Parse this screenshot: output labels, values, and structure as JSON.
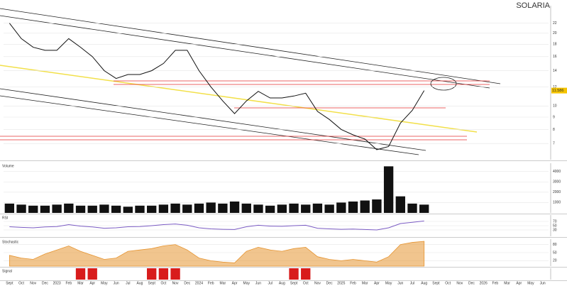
{
  "chart_data": [
    {
      "type": "line",
      "title": "SOLARIA",
      "color": "#111111",
      "log": true,
      "grid": true,
      "categories": [
        "Sept",
        "Oct",
        "Nov",
        "Dec",
        "2023",
        "Feb",
        "Mar",
        "Apr",
        "May",
        "Jun",
        "Jul",
        "Aug",
        "Sept",
        "Oct",
        "Nov",
        "Dec",
        "2024",
        "Feb",
        "Mar",
        "Apr",
        "May",
        "Jun",
        "Jul",
        "Aug",
        "Sept",
        "Oct",
        "Nov",
        "Dec",
        "2025",
        "Feb",
        "Mar",
        "Apr",
        "May",
        "Jun",
        "Jul",
        "Aug",
        "Sept",
        "Oct",
        "Nov",
        "Dec",
        "2026",
        "Feb",
        "Mar",
        "Apr",
        "May",
        "Jun"
      ],
      "values": [
        22,
        19,
        17.5,
        17,
        17,
        19,
        17.5,
        16,
        14,
        13,
        13.5,
        13.5,
        14,
        15,
        17,
        17,
        14,
        12,
        10.5,
        9.3,
        10.5,
        11.5,
        10.8,
        10.8,
        11,
        11.3,
        9.5,
        8.8,
        8,
        7.6,
        7.3,
        6.6,
        6.8,
        8.5,
        9.6,
        11.586,
        null,
        null,
        null,
        null,
        null,
        null,
        null,
        null,
        null,
        null
      ],
      "value_labels": [
        null,
        null,
        null,
        null,
        null,
        null,
        null,
        null,
        null,
        null,
        null,
        null,
        null,
        null,
        null,
        null,
        null,
        null,
        null,
        null,
        null,
        null,
        null,
        null,
        null,
        null,
        null,
        null,
        null,
        null,
        null,
        null,
        null,
        null,
        null,
        "11.586",
        null,
        null,
        null,
        null,
        null,
        null,
        null,
        null,
        null,
        null
      ],
      "ylim": [
        6,
        26
      ],
      "yticks": [
        7,
        8,
        9,
        10,
        12,
        14,
        16,
        18,
        20,
        22
      ]
    },
    {
      "type": "bar",
      "title": "Volume",
      "color": "#111111",
      "values": [
        900,
        800,
        700,
        700,
        800,
        900,
        700,
        700,
        800,
        700,
        600,
        700,
        700,
        800,
        900,
        800,
        900,
        1000,
        900,
        1100,
        900,
        800,
        700,
        800,
        900,
        800,
        900,
        800,
        1000,
        1100,
        1200,
        1300,
        4500,
        1600,
        900,
        800,
        null,
        null,
        null,
        null,
        null,
        null,
        null,
        null,
        null,
        null
      ],
      "ylim": [
        0,
        4800
      ],
      "yticks": [
        1000,
        2000,
        3000,
        4000
      ]
    },
    {
      "type": "line",
      "title": "RSI",
      "color": "#7b5cc4",
      "values": [
        45,
        42,
        40,
        44,
        46,
        55,
        48,
        44,
        38,
        40,
        45,
        46,
        50,
        55,
        58,
        52,
        40,
        35,
        33,
        32,
        45,
        52,
        48,
        47,
        50,
        52,
        38,
        35,
        33,
        34,
        32,
        30,
        40,
        60,
        66,
        72,
        null,
        null,
        null,
        null,
        null,
        null,
        null,
        null,
        null,
        null
      ],
      "ylim": [
        0,
        100
      ],
      "yticks": [
        30,
        50,
        70
      ]
    },
    {
      "type": "area",
      "title": "Stochastic",
      "color": "#e69532",
      "values": [
        40,
        30,
        25,
        45,
        60,
        75,
        55,
        40,
        25,
        30,
        55,
        60,
        65,
        75,
        80,
        60,
        30,
        20,
        15,
        12,
        55,
        70,
        60,
        55,
        65,
        70,
        35,
        25,
        20,
        25,
        20,
        15,
        35,
        80,
        88,
        92,
        null,
        null,
        null,
        null,
        null,
        null,
        null,
        null,
        null,
        null
      ],
      "ylim": [
        0,
        100
      ],
      "yticks": [
        20,
        50,
        80
      ]
    },
    {
      "type": "bar",
      "title": "Signal",
      "color": "#d81c1c",
      "values": [
        0,
        0,
        0,
        0,
        0,
        0,
        1,
        1,
        0,
        0,
        0,
        0,
        1,
        1,
        1,
        0,
        0,
        0,
        0,
        0,
        0,
        0,
        0,
        0,
        1,
        1,
        0,
        0,
        0,
        0,
        0,
        0,
        0,
        0,
        0,
        0,
        null,
        null,
        null,
        null,
        null,
        null,
        null,
        null,
        null,
        null
      ],
      "ylim": [
        0,
        1
      ],
      "yticks": []
    }
  ]
}
